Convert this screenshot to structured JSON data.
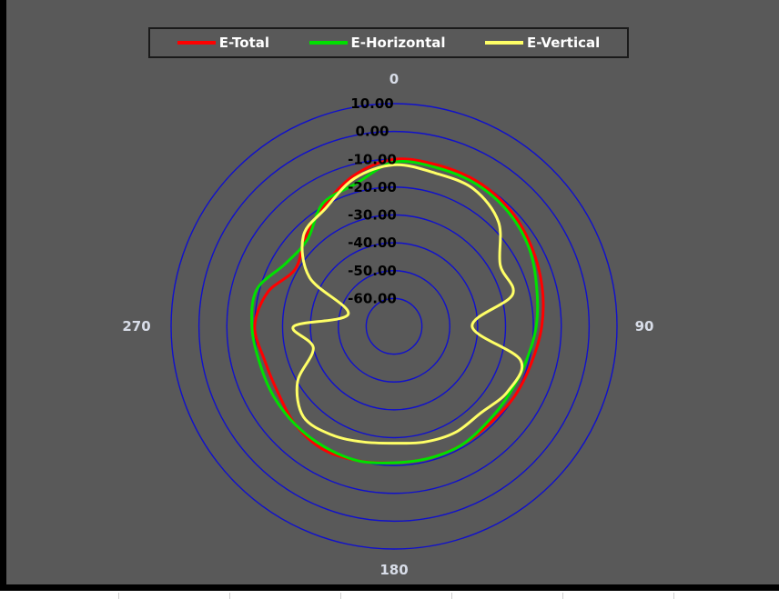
{
  "chart_data": {
    "type": "polar-line",
    "title": "",
    "angle_labels": [
      "0",
      "90",
      "180",
      "270"
    ],
    "radial_ticks": [
      "10.00",
      "0.00",
      "-10.00",
      "-20.00",
      "-30.00",
      "-40.00",
      "-50.00",
      "-60.00"
    ],
    "radial_range": [
      -70,
      10
    ],
    "grid": true,
    "legend_position": "top",
    "colors": {
      "background": "#595959",
      "grid": "#1010cc",
      "E-Total": "#ff0000",
      "E-Horizontal": "#00e000",
      "E-Vertical": "#ffff66"
    },
    "series": [
      {
        "name": "E-Total",
        "color": "#ff0000",
        "angles": [
          0,
          15,
          30,
          45,
          60,
          75,
          90,
          105,
          120,
          135,
          150,
          165,
          180,
          195,
          210,
          225,
          240,
          255,
          270,
          285,
          300,
          315,
          330,
          345
        ],
        "values": [
          -10,
          -10,
          -10,
          -11,
          -13,
          -15,
          -17,
          -19,
          -20,
          -21,
          -21,
          -21,
          -21,
          -20,
          -19,
          -20,
          -22,
          -22,
          -20,
          -23,
          -29,
          -25,
          -20,
          -14
        ]
      },
      {
        "name": "E-Horizontal",
        "color": "#00e000",
        "angles": [
          0,
          15,
          30,
          45,
          60,
          75,
          90,
          105,
          120,
          135,
          150,
          165,
          180,
          195,
          210,
          225,
          240,
          255,
          270,
          285,
          300,
          315,
          330,
          345
        ],
        "values": [
          -11,
          -11,
          -11,
          -12,
          -14,
          -17,
          -19,
          -21,
          -22,
          -22,
          -21,
          -21,
          -21,
          -20,
          -20,
          -20,
          -20,
          -20,
          -19,
          -19,
          -25,
          -26,
          -19,
          -17
        ]
      },
      {
        "name": "E-Vertical",
        "color": "#ffff66",
        "angles": [
          0,
          15,
          30,
          45,
          60,
          75,
          90,
          105,
          120,
          135,
          150,
          165,
          180,
          195,
          210,
          225,
          240,
          255,
          270,
          285,
          300,
          315,
          330,
          345
        ],
        "values": [
          -12,
          -13,
          -13,
          -17,
          -26,
          -26,
          -42,
          -23,
          -23,
          -26,
          -26,
          -27,
          -28,
          -27,
          -25,
          -24,
          -30,
          -40,
          -34,
          -53,
          -35,
          -24,
          -21,
          -15
        ]
      }
    ]
  }
}
